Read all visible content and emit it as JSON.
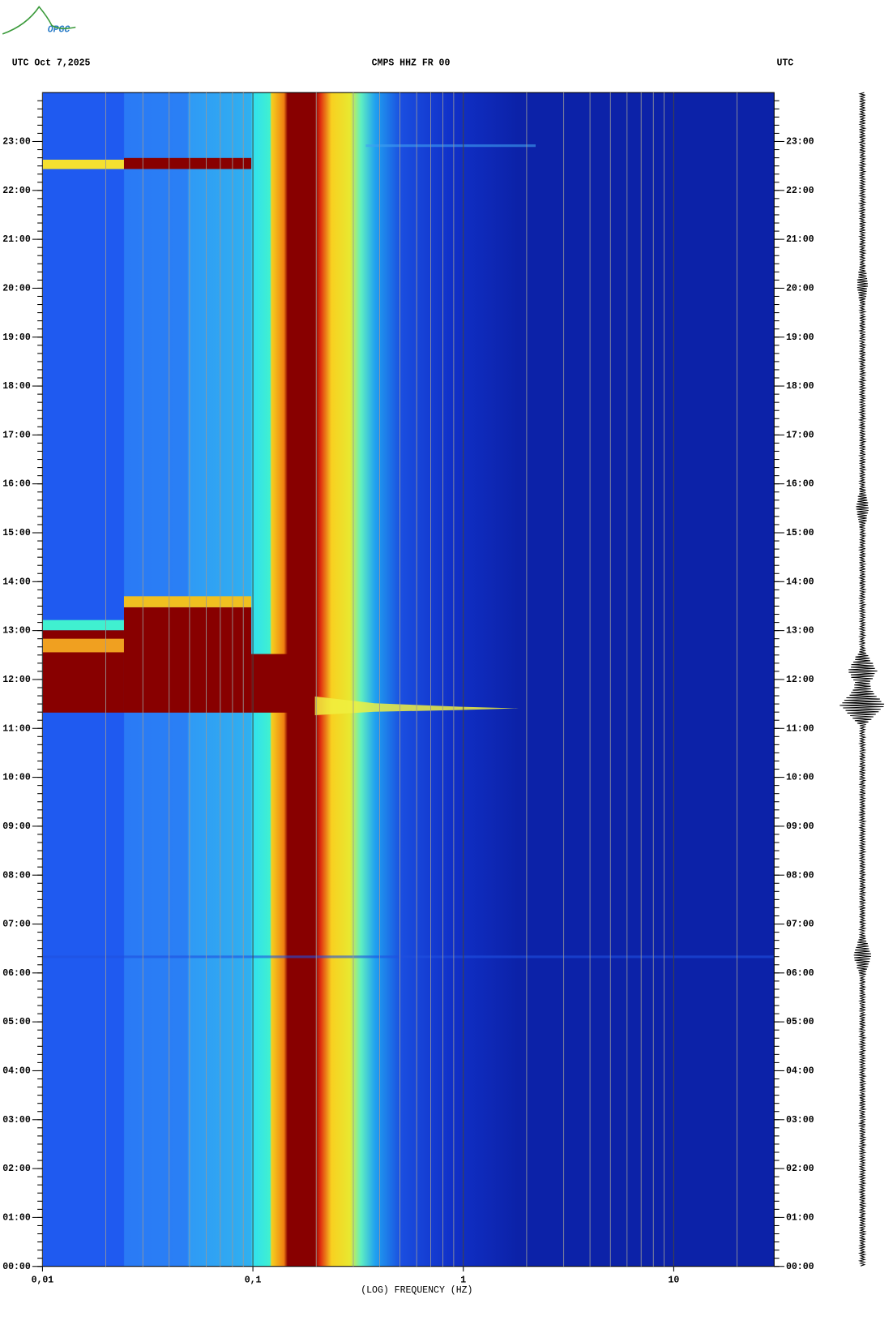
{
  "chart_data": {
    "type": "spectrogram",
    "logo": "OPGC",
    "header_left": "UTC  Oct 7,2025",
    "title": "CMPS HHZ FR 00",
    "header_right": "UTC",
    "x_label": "(LOG) FREQUENCY (HZ)",
    "log_x": true,
    "xlim": [
      0.01,
      30
    ],
    "xticks": [
      {
        "value": 0.01,
        "label": "0,01"
      },
      {
        "value": 0.1,
        "label": "0,1"
      },
      1,
      10
    ],
    "ylim": [
      0,
      24
    ],
    "yticks": [
      {
        "value": 0,
        "label": "00:00"
      },
      {
        "value": 1,
        "label": "01:00"
      },
      {
        "value": 2,
        "label": "02:00"
      },
      {
        "value": 3,
        "label": "03:00"
      },
      {
        "value": 4,
        "label": "04:00"
      },
      {
        "value": 5,
        "label": "05:00"
      },
      {
        "value": 6,
        "label": "06:00"
      },
      {
        "value": 7,
        "label": "07:00"
      },
      {
        "value": 8,
        "label": "08:00"
      },
      {
        "value": 9,
        "label": "09:00"
      },
      {
        "value": 10,
        "label": "10:00"
      },
      {
        "value": 11,
        "label": "11:00"
      },
      {
        "value": 12,
        "label": "12:00"
      },
      {
        "value": 13,
        "label": "13:00"
      },
      {
        "value": 14,
        "label": "14:00"
      },
      {
        "value": 15,
        "label": "15:00"
      },
      {
        "value": 16,
        "label": "16:00"
      },
      {
        "value": 17,
        "label": "17:00"
      },
      {
        "value": 18,
        "label": "18:00"
      },
      {
        "value": 19,
        "label": "19:00"
      },
      {
        "value": 20,
        "label": "20:00"
      },
      {
        "value": 21,
        "label": "21:00"
      },
      {
        "value": 22,
        "label": "22:00"
      },
      {
        "value": 23,
        "label": "23:00"
      }
    ]
  }
}
